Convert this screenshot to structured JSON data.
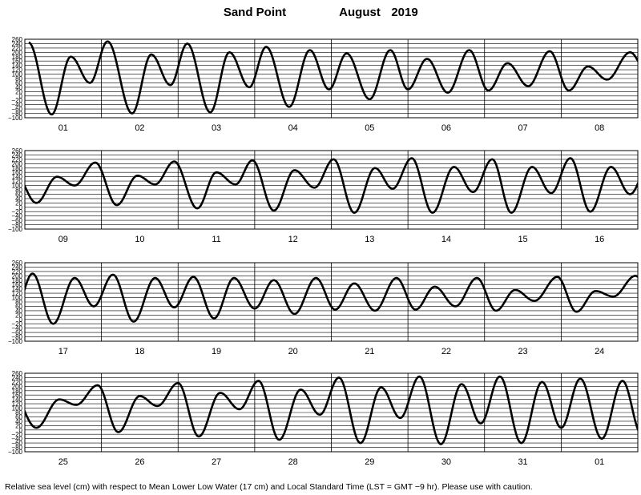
{
  "header": {
    "station": "Sand Point",
    "month": "August",
    "year": "2019"
  },
  "footer": {
    "note": "Relative sea level (cm) with respect to Mean Lower Low Water (17 cm) and Local Standard Time (LST = GMT −9 hr). Please use with caution."
  },
  "colors": {
    "line": "#000000",
    "grid": "#000000",
    "background": "#ffffff"
  },
  "chart_data": [
    {
      "type": "line",
      "y_ticks": [
        "260",
        "240",
        "220",
        "200",
        "180",
        "160",
        "140",
        "120",
        "100",
        "80",
        "60",
        "40",
        "20",
        "0",
        "−20",
        "−40",
        "−60",
        "−80",
        "−100"
      ],
      "ylim": [
        -100,
        260
      ],
      "x_tick_labels": [
        "01",
        "02",
        "03",
        "04",
        "05",
        "06",
        "07",
        "08"
      ],
      "extrema": [
        {
          "t": 0.05,
          "v": 245
        },
        {
          "t": 0.35,
          "v": -85
        },
        {
          "t": 0.6,
          "v": 180
        },
        {
          "t": 0.85,
          "v": 60
        },
        {
          "t": 1.08,
          "v": 250
        },
        {
          "t": 1.4,
          "v": -80
        },
        {
          "t": 1.65,
          "v": 190
        },
        {
          "t": 1.9,
          "v": 50
        },
        {
          "t": 2.12,
          "v": 240
        },
        {
          "t": 2.42,
          "v": -75
        },
        {
          "t": 2.67,
          "v": 200
        },
        {
          "t": 2.93,
          "v": 40
        },
        {
          "t": 3.15,
          "v": 225
        },
        {
          "t": 3.45,
          "v": -50
        },
        {
          "t": 3.72,
          "v": 210
        },
        {
          "t": 3.97,
          "v": 30
        },
        {
          "t": 4.2,
          "v": 195
        },
        {
          "t": 4.5,
          "v": -15
        },
        {
          "t": 4.77,
          "v": 210
        },
        {
          "t": 5.0,
          "v": 30
        },
        {
          "t": 5.25,
          "v": 170
        },
        {
          "t": 5.52,
          "v": 15
        },
        {
          "t": 5.8,
          "v": 210
        },
        {
          "t": 6.05,
          "v": 25
        },
        {
          "t": 6.3,
          "v": 150
        },
        {
          "t": 6.57,
          "v": 45
        },
        {
          "t": 6.85,
          "v": 205
        },
        {
          "t": 7.1,
          "v": 25
        },
        {
          "t": 7.35,
          "v": 135
        },
        {
          "t": 7.6,
          "v": 75
        },
        {
          "t": 7.9,
          "v": 200
        },
        {
          "t": 8.12,
          "v": 110
        }
      ]
    },
    {
      "type": "line",
      "y_ticks": [
        "260",
        "240",
        "220",
        "200",
        "180",
        "160",
        "140",
        "120",
        "100",
        "80",
        "60",
        "40",
        "20",
        "0",
        "−20",
        "−40",
        "−60",
        "−80",
        "−100"
      ],
      "ylim": [
        -100,
        260
      ],
      "x_tick_labels": [
        "09",
        "10",
        "11",
        "12",
        "13",
        "14",
        "15",
        "16"
      ],
      "extrema": [
        {
          "t": -0.12,
          "v": 150
        },
        {
          "t": 0.15,
          "v": 20
        },
        {
          "t": 0.42,
          "v": 140
        },
        {
          "t": 0.65,
          "v": 100
        },
        {
          "t": 0.92,
          "v": 205
        },
        {
          "t": 1.2,
          "v": 10
        },
        {
          "t": 1.47,
          "v": 145
        },
        {
          "t": 1.7,
          "v": 105
        },
        {
          "t": 1.95,
          "v": 210
        },
        {
          "t": 2.25,
          "v": -5
        },
        {
          "t": 2.5,
          "v": 160
        },
        {
          "t": 2.75,
          "v": 105
        },
        {
          "t": 2.97,
          "v": 215
        },
        {
          "t": 3.25,
          "v": -15
        },
        {
          "t": 3.52,
          "v": 170
        },
        {
          "t": 3.78,
          "v": 90
        },
        {
          "t": 4.03,
          "v": 220
        },
        {
          "t": 4.3,
          "v": -25
        },
        {
          "t": 4.57,
          "v": 180
        },
        {
          "t": 4.8,
          "v": 85
        },
        {
          "t": 5.05,
          "v": 225
        },
        {
          "t": 5.32,
          "v": -25
        },
        {
          "t": 5.6,
          "v": 185
        },
        {
          "t": 5.85,
          "v": 70
        },
        {
          "t": 6.1,
          "v": 220
        },
        {
          "t": 6.35,
          "v": -25
        },
        {
          "t": 6.62,
          "v": 185
        },
        {
          "t": 6.87,
          "v": 65
        },
        {
          "t": 7.12,
          "v": 225
        },
        {
          "t": 7.38,
          "v": -20
        },
        {
          "t": 7.65,
          "v": 185
        },
        {
          "t": 7.9,
          "v": 60
        },
        {
          "t": 8.15,
          "v": 200
        }
      ]
    },
    {
      "type": "line",
      "y_ticks": [
        "260",
        "240",
        "220",
        "200",
        "180",
        "160",
        "140",
        "120",
        "100",
        "80",
        "60",
        "40",
        "20",
        "0",
        "−20",
        "−40",
        "−60",
        "−80",
        "−100"
      ],
      "ylim": [
        -100,
        260
      ],
      "x_tick_labels": [
        "17",
        "18",
        "19",
        "20",
        "21",
        "22",
        "23",
        "24"
      ],
      "extrema": [
        {
          "t": -0.12,
          "v": 50
        },
        {
          "t": 0.1,
          "v": 210
        },
        {
          "t": 0.37,
          "v": -20
        },
        {
          "t": 0.65,
          "v": 190
        },
        {
          "t": 0.9,
          "v": 60
        },
        {
          "t": 1.15,
          "v": 205
        },
        {
          "t": 1.42,
          "v": -10
        },
        {
          "t": 1.7,
          "v": 190
        },
        {
          "t": 1.95,
          "v": 55
        },
        {
          "t": 2.2,
          "v": 195
        },
        {
          "t": 2.47,
          "v": 5
        },
        {
          "t": 2.73,
          "v": 190
        },
        {
          "t": 3.0,
          "v": 50
        },
        {
          "t": 3.25,
          "v": 180
        },
        {
          "t": 3.52,
          "v": 25
        },
        {
          "t": 3.8,
          "v": 190
        },
        {
          "t": 4.05,
          "v": 45
        },
        {
          "t": 4.3,
          "v": 165
        },
        {
          "t": 4.57,
          "v": 40
        },
        {
          "t": 4.85,
          "v": 190
        },
        {
          "t": 5.1,
          "v": 45
        },
        {
          "t": 5.35,
          "v": 150
        },
        {
          "t": 5.62,
          "v": 60
        },
        {
          "t": 5.9,
          "v": 190
        },
        {
          "t": 6.15,
          "v": 40
        },
        {
          "t": 6.4,
          "v": 135
        },
        {
          "t": 6.65,
          "v": 85
        },
        {
          "t": 6.95,
          "v": 195
        },
        {
          "t": 7.2,
          "v": 35
        },
        {
          "t": 7.45,
          "v": 130
        },
        {
          "t": 7.68,
          "v": 105
        },
        {
          "t": 7.97,
          "v": 200
        },
        {
          "t": 8.25,
          "v": 30
        }
      ]
    },
    {
      "type": "line",
      "y_ticks": [
        "260",
        "240",
        "220",
        "200",
        "180",
        "160",
        "140",
        "120",
        "100",
        "80",
        "60",
        "40",
        "20",
        "0",
        "−20",
        "−40",
        "−60",
        "−80",
        "−100"
      ],
      "ylim": [
        -100,
        260
      ],
      "x_tick_labels": [
        "25",
        "26",
        "27",
        "28",
        "29",
        "30",
        "31",
        "01"
      ],
      "extrema": [
        {
          "t": -0.2,
          "v": 200
        },
        {
          "t": 0.15,
          "v": 10
        },
        {
          "t": 0.45,
          "v": 140
        },
        {
          "t": 0.67,
          "v": 115
        },
        {
          "t": 0.95,
          "v": 205
        },
        {
          "t": 1.22,
          "v": -10
        },
        {
          "t": 1.5,
          "v": 155
        },
        {
          "t": 1.73,
          "v": 110
        },
        {
          "t": 2.0,
          "v": 215
        },
        {
          "t": 2.27,
          "v": -30
        },
        {
          "t": 2.55,
          "v": 170
        },
        {
          "t": 2.8,
          "v": 95
        },
        {
          "t": 3.05,
          "v": 225
        },
        {
          "t": 3.32,
          "v": -45
        },
        {
          "t": 3.6,
          "v": 185
        },
        {
          "t": 3.85,
          "v": 70
        },
        {
          "t": 4.1,
          "v": 240
        },
        {
          "t": 4.38,
          "v": -60
        },
        {
          "t": 4.65,
          "v": 195
        },
        {
          "t": 4.9,
          "v": 55
        },
        {
          "t": 5.15,
          "v": 245
        },
        {
          "t": 5.43,
          "v": -65
        },
        {
          "t": 5.7,
          "v": 210
        },
        {
          "t": 5.95,
          "v": 30
        },
        {
          "t": 6.2,
          "v": 245
        },
        {
          "t": 6.48,
          "v": -60
        },
        {
          "t": 6.75,
          "v": 220
        },
        {
          "t": 7.0,
          "v": 10
        },
        {
          "t": 7.25,
          "v": 235
        },
        {
          "t": 7.53,
          "v": -40
        },
        {
          "t": 7.8,
          "v": 225
        },
        {
          "t": 8.05,
          "v": -20
        }
      ]
    }
  ]
}
